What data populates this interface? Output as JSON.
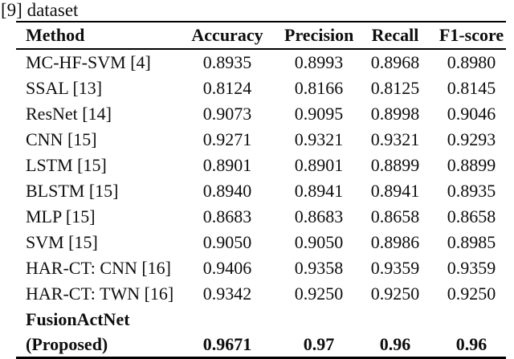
{
  "caption": "[9] dataset",
  "table": {
    "columns": [
      "Method",
      "Accuracy",
      "Precision",
      "Recall",
      "F1-score"
    ],
    "rows": [
      {
        "method": "MC-HF-SVM [4]",
        "values": [
          "0.8935",
          "0.8993",
          "0.8968",
          "0.8980"
        ]
      },
      {
        "method": "SSAL [13]",
        "values": [
          "0.8124",
          "0.8166",
          "0.8125",
          "0.8145"
        ]
      },
      {
        "method": "ResNet [14]",
        "values": [
          "0.9073",
          "0.9095",
          "0.8998",
          "0.9046"
        ]
      },
      {
        "method": "CNN [15]",
        "values": [
          "0.9271",
          "0.9321",
          "0.9321",
          "0.9293"
        ]
      },
      {
        "method": "LSTM [15]",
        "values": [
          "0.8901",
          "0.8901",
          "0.8899",
          "0.8899"
        ]
      },
      {
        "method": "BLSTM [15]",
        "values": [
          "0.8940",
          "0.8941",
          "0.8941",
          "0.8935"
        ]
      },
      {
        "method": "MLP [15]",
        "values": [
          "0.8683",
          "0.8683",
          "0.8658",
          "0.8658"
        ]
      },
      {
        "method": "SVM [15]",
        "values": [
          "0.9050",
          "0.9050",
          "0.8986",
          "0.8985"
        ]
      },
      {
        "method": "HAR-CT: CNN [16]",
        "values": [
          "0.9406",
          "0.9358",
          "0.9359",
          "0.9359"
        ]
      },
      {
        "method": "HAR-CT: TWN [16]",
        "values": [
          "0.9342",
          "0.9250",
          "0.9250",
          "0.9250"
        ]
      },
      {
        "method_line1": "FusionActNet",
        "method_line2": "(Proposed)",
        "values": [
          "0.9671",
          "0.97",
          "0.96",
          "0.96"
        ],
        "bold": true
      }
    ],
    "text_color": "#0e0e0e",
    "background_color": "#ffffff"
  }
}
